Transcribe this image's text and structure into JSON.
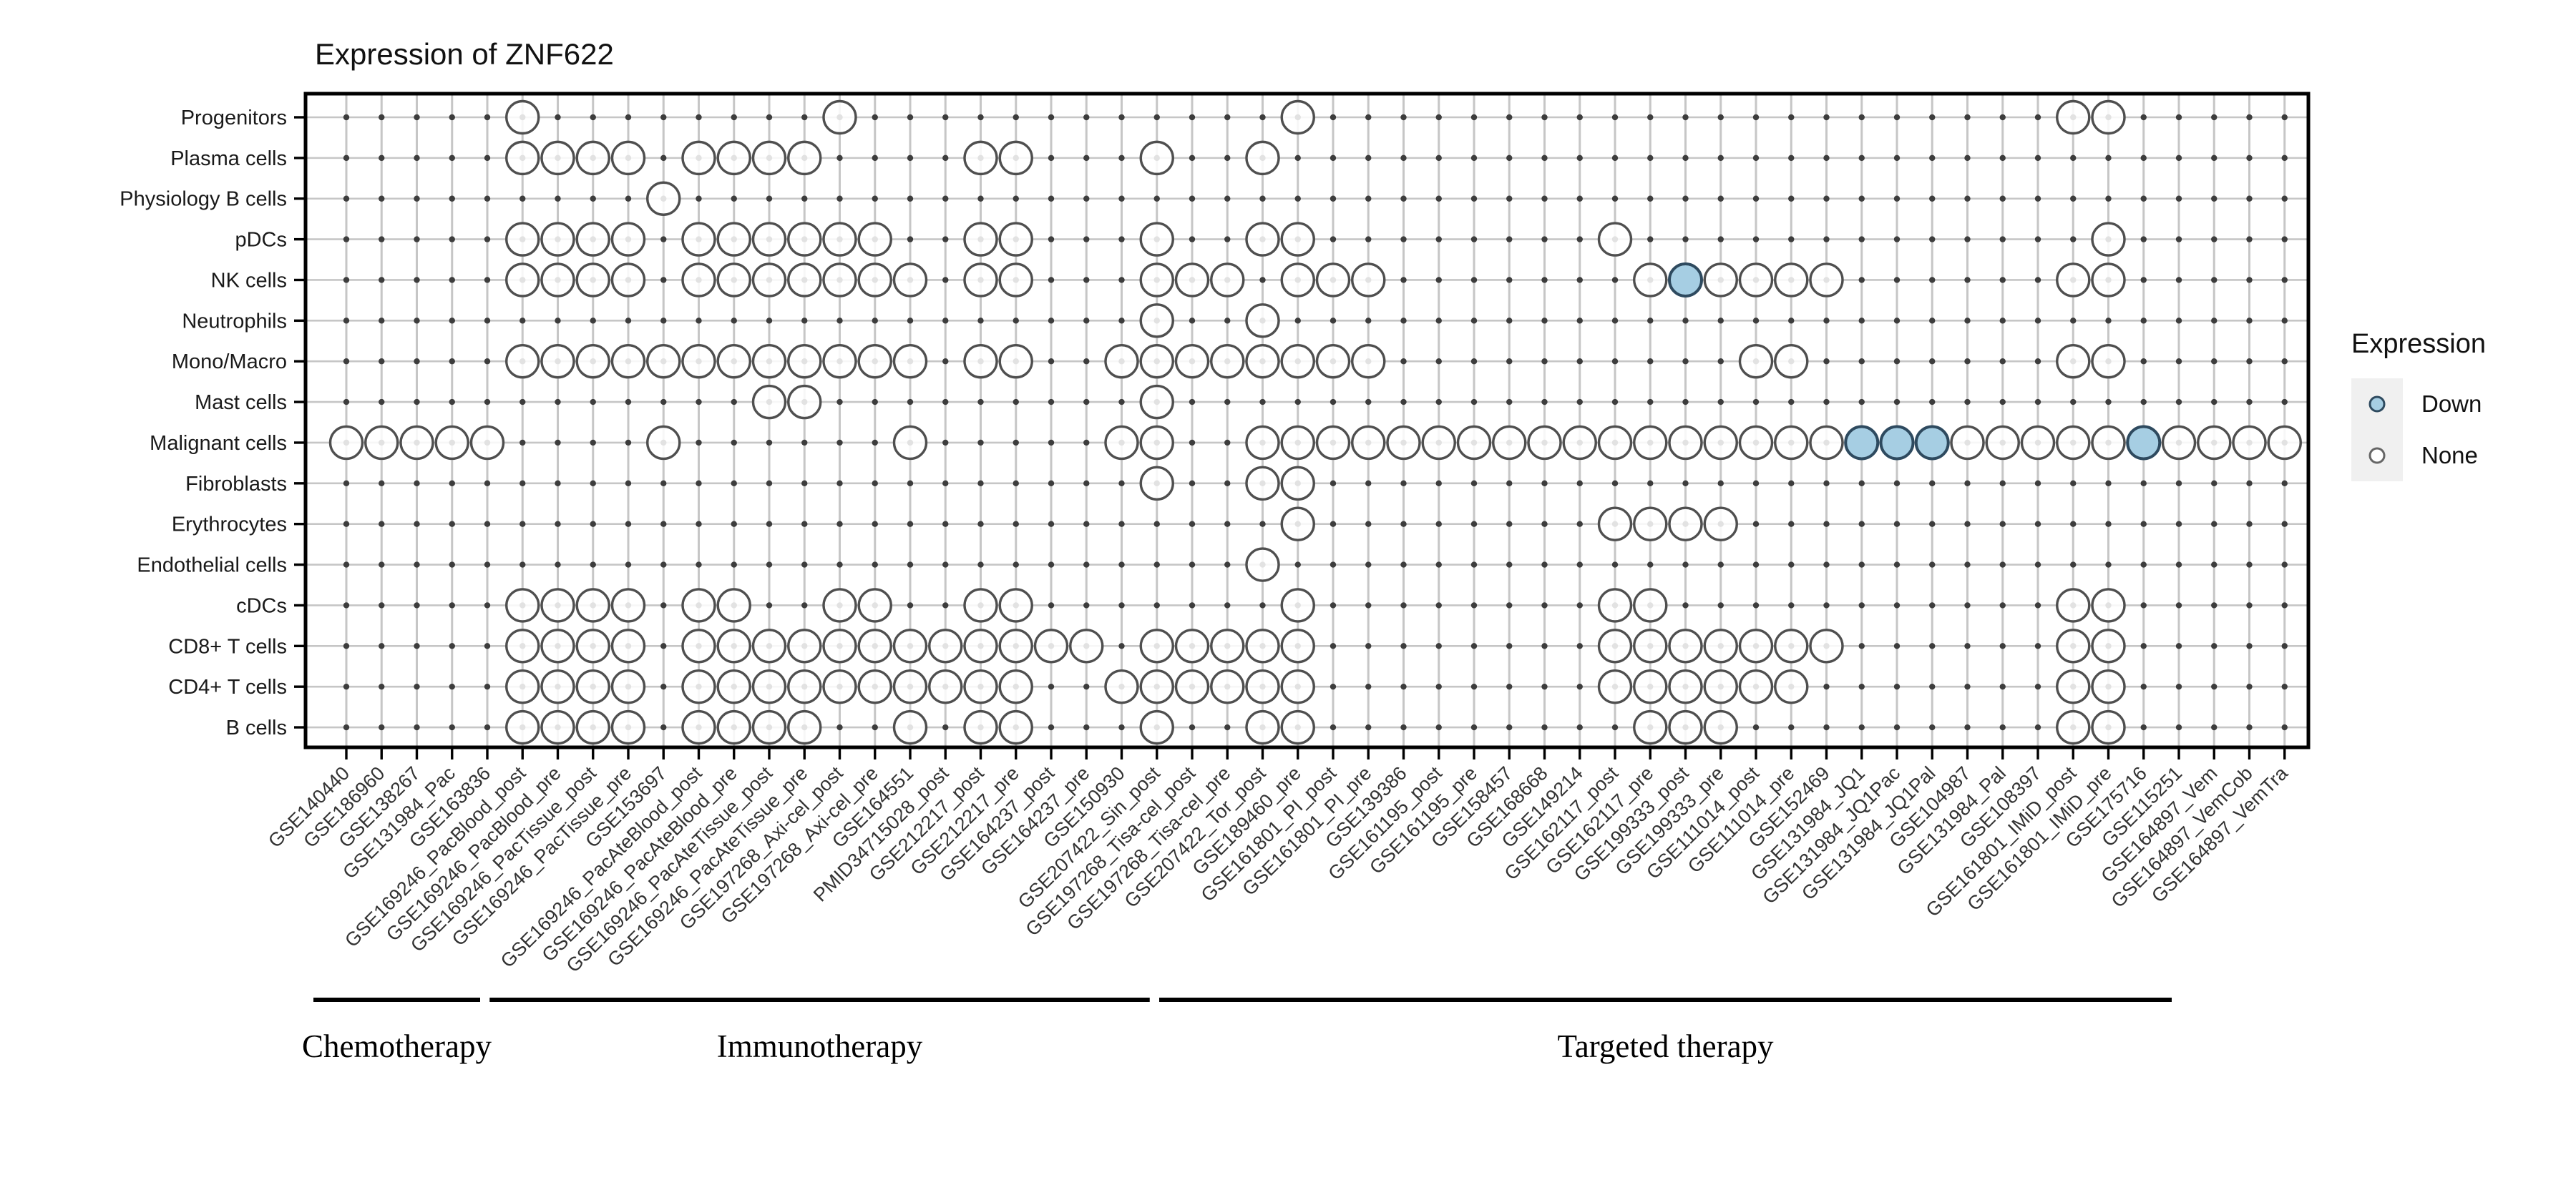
{
  "title": "Expression of ZNF622",
  "chart_data": {
    "type": "heatmap",
    "subtype": "dot-matrix",
    "title": "Expression of ZNF622",
    "x_categories": [
      "GSE140440",
      "GSE186960",
      "GSE138267",
      "GSE131984_Pac",
      "GSE163836",
      "GSE169246_PacBlood_post",
      "GSE169246_PacBlood_pre",
      "GSE169246_PacTissue_post",
      "GSE169246_PacTissue_pre",
      "GSE153697",
      "GSE169246_PacAteBlood_post",
      "GSE169246_PacAteBlood_pre",
      "GSE169246_PacAteTissue_post",
      "GSE169246_PacAteTissue_pre",
      "GSE197268_Axi-cel_post",
      "GSE197268_Axi-cel_pre",
      "GSE164551",
      "PMID34715028_post",
      "GSE212217_post",
      "GSE212217_pre",
      "GSE164237_post",
      "GSE164237_pre",
      "GSE150930",
      "GSE207422_Sin_post",
      "GSE197268_Tisa-cel_post",
      "GSE197268_Tisa-cel_pre",
      "GSE207422_Tor_post",
      "GSE189460_pre",
      "GSE161801_PI_post",
      "GSE161801_PI_pre",
      "GSE139386",
      "GSE161195_post",
      "GSE161195_pre",
      "GSE158457",
      "GSE168668",
      "GSE149214",
      "GSE162117_post",
      "GSE162117_pre",
      "GSE199333_post",
      "GSE199333_pre",
      "GSE111014_post",
      "GSE111014_pre",
      "GSE152469",
      "GSE131984_JQ1",
      "GSE131984_JQ1Pac",
      "GSE131984_JQ1Pal",
      "GSE104987",
      "GSE131984_Pal",
      "GSE108397",
      "GSE161801_IMiD_post",
      "GSE161801_IMiD_pre",
      "GSE175716",
      "GSE115251",
      "GSE164897_Vem",
      "GSE164897_VemCob",
      "GSE164897_VemTra"
    ],
    "y_categories": [
      "Progenitors",
      "Plasma cells",
      "Physiology B cells",
      "pDCs",
      "NK cells",
      "Neutrophils",
      "Mono/Macro",
      "Mast cells",
      "Malignant cells",
      "Fibroblasts",
      "Erythrocytes",
      "Endothelial cells",
      "cDCs",
      "CD8+ T cells",
      "CD4+ T cells",
      "B cells"
    ],
    "cells": [
      {
        "row": "Progenitors",
        "cols": [
          6,
          15,
          28,
          50,
          51
        ],
        "down": []
      },
      {
        "row": "Plasma cells",
        "cols": [
          6,
          7,
          8,
          9,
          11,
          12,
          13,
          14,
          19,
          20,
          24,
          27
        ],
        "down": []
      },
      {
        "row": "Physiology B cells",
        "cols": [
          10
        ],
        "down": []
      },
      {
        "row": "pDCs",
        "cols": [
          6,
          7,
          8,
          9,
          11,
          12,
          13,
          14,
          15,
          16,
          19,
          20,
          24,
          27,
          28,
          37,
          51
        ],
        "down": []
      },
      {
        "row": "NK cells",
        "cols": [
          6,
          7,
          8,
          9,
          11,
          12,
          13,
          14,
          15,
          16,
          17,
          19,
          20,
          24,
          25,
          26,
          28,
          29,
          30,
          38,
          39,
          40,
          41,
          42,
          43,
          50,
          51
        ],
        "down": [
          39
        ]
      },
      {
        "row": "Neutrophils",
        "cols": [
          24,
          27
        ],
        "down": []
      },
      {
        "row": "Mono/Macro",
        "cols": [
          6,
          7,
          8,
          9,
          10,
          11,
          12,
          13,
          14,
          15,
          16,
          17,
          19,
          20,
          23,
          24,
          25,
          26,
          27,
          28,
          29,
          30,
          41,
          42,
          50,
          51
        ],
        "down": []
      },
      {
        "row": "Mast cells",
        "cols": [
          13,
          14,
          24
        ],
        "down": []
      },
      {
        "row": "Malignant cells",
        "cols": [
          1,
          2,
          3,
          4,
          5,
          10,
          17,
          23,
          24,
          27,
          28,
          29,
          30,
          31,
          32,
          33,
          34,
          35,
          36,
          37,
          38,
          39,
          40,
          41,
          42,
          43,
          44,
          45,
          46,
          47,
          48,
          49,
          50,
          51,
          52,
          53,
          54,
          55,
          56
        ],
        "down": [
          44,
          45,
          46,
          52
        ]
      },
      {
        "row": "Fibroblasts",
        "cols": [
          24,
          27,
          28
        ],
        "down": []
      },
      {
        "row": "Erythrocytes",
        "cols": [
          28,
          37,
          38,
          39,
          40
        ],
        "down": []
      },
      {
        "row": "Endothelial cells",
        "cols": [
          27
        ],
        "down": []
      },
      {
        "row": "cDCs",
        "cols": [
          6,
          7,
          8,
          9,
          11,
          12,
          15,
          16,
          19,
          20,
          28,
          37,
          38,
          50,
          51
        ],
        "down": []
      },
      {
        "row": "CD8+ T cells",
        "cols": [
          6,
          7,
          8,
          9,
          11,
          12,
          13,
          14,
          15,
          16,
          17,
          18,
          19,
          20,
          21,
          22,
          24,
          25,
          26,
          27,
          28,
          37,
          38,
          39,
          40,
          41,
          42,
          43,
          50,
          51
        ],
        "down": []
      },
      {
        "row": "CD4+ T cells",
        "cols": [
          6,
          7,
          8,
          9,
          11,
          12,
          13,
          14,
          15,
          16,
          17,
          18,
          19,
          20,
          23,
          24,
          25,
          26,
          27,
          28,
          37,
          38,
          39,
          40,
          41,
          42,
          50,
          51
        ],
        "down": []
      },
      {
        "row": "B cells",
        "cols": [
          6,
          7,
          8,
          9,
          11,
          12,
          13,
          14,
          17,
          19,
          20,
          24,
          27,
          28,
          38,
          39,
          40,
          50,
          51
        ],
        "down": []
      }
    ],
    "therapy_groups": [
      {
        "label": "Chemotherapy",
        "from": 1,
        "to": 5
      },
      {
        "label": "Immunotherapy",
        "from": 6,
        "to": 24
      },
      {
        "label": "Targeted therapy",
        "from": 25,
        "to": 53
      }
    ],
    "legend": {
      "title": "Expression",
      "items": [
        {
          "label": "Down",
          "value": "down"
        },
        {
          "label": "None",
          "value": "none"
        }
      ]
    },
    "colors": {
      "down_fill": "#A6CEE3",
      "down_stroke": "#2E4A5F",
      "none_fill": "#FFFFFF",
      "none_stroke": "#4F4F4F",
      "grid": "#C6C6C6",
      "grid_dot": "#3D3D3D",
      "border": "#000000",
      "axis_text": "#333333",
      "legend_key_bg": "#F0F0F0"
    },
    "layout": {
      "grid": true,
      "legend_position": "right",
      "x_label_angle": 45
    }
  }
}
